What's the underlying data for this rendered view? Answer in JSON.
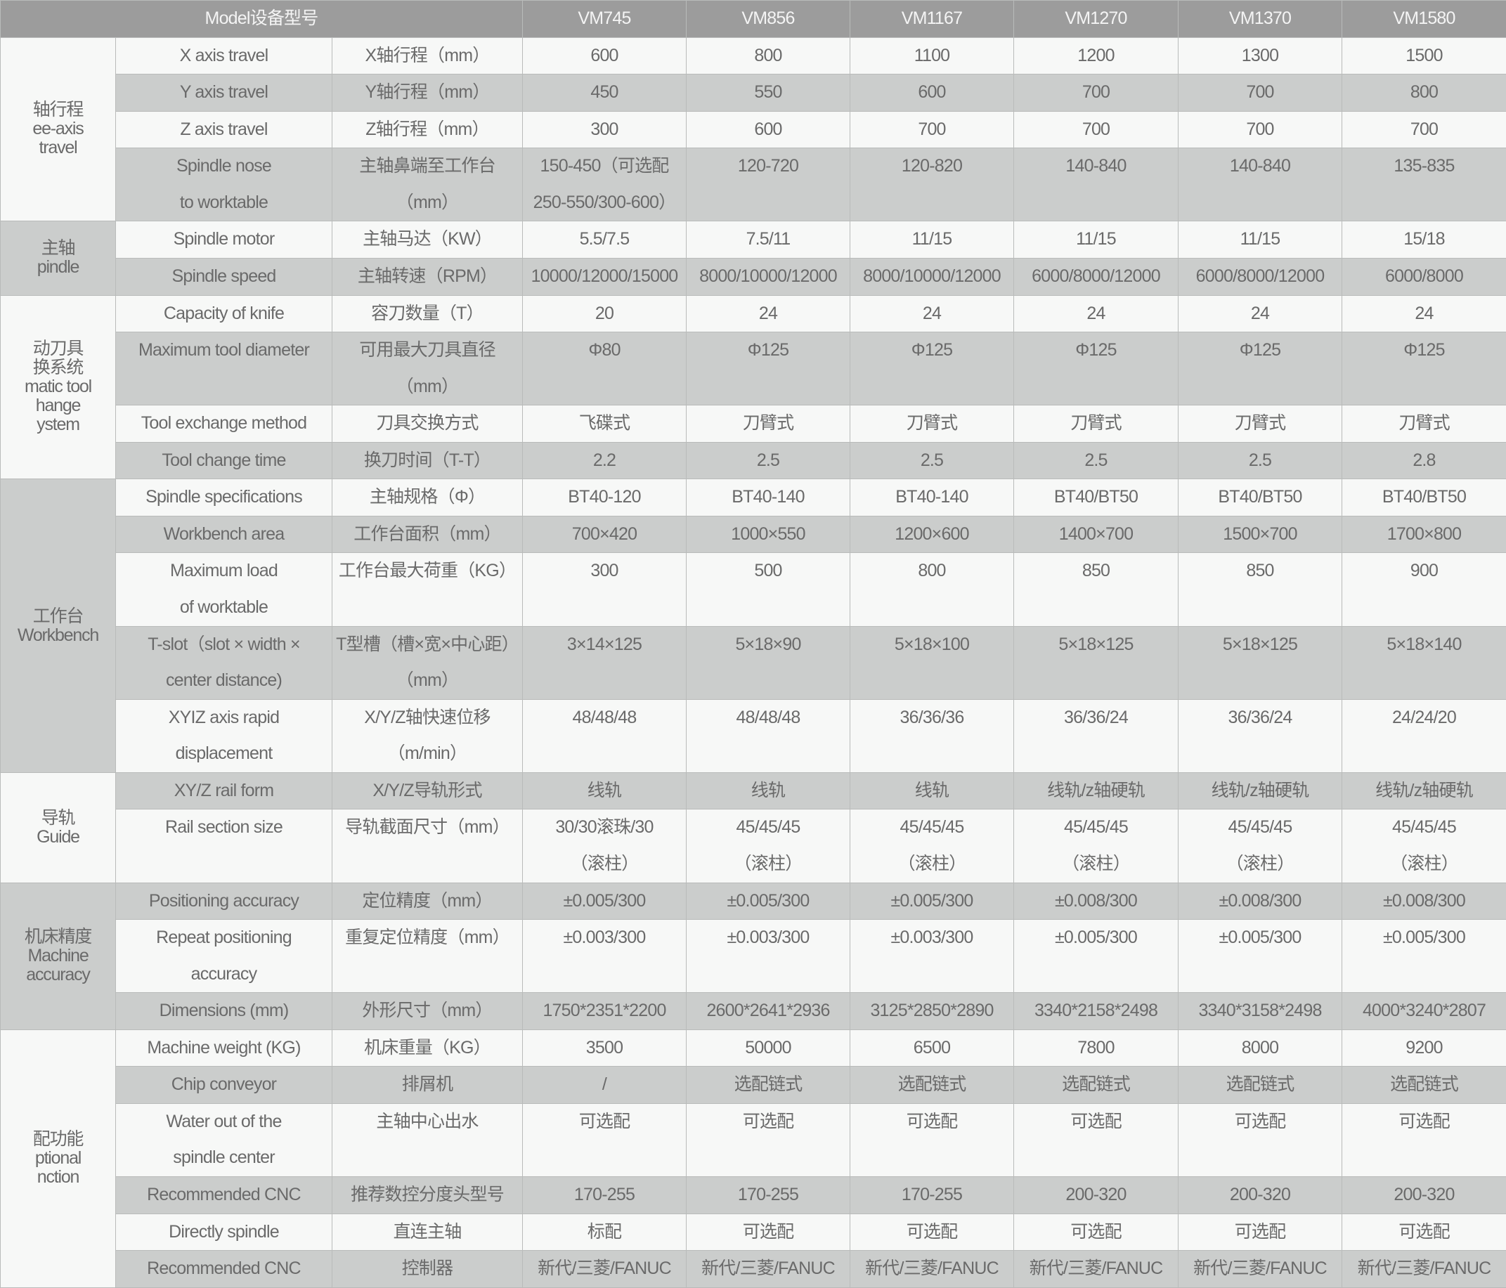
{
  "header": {
    "model_label": "Model设备型号",
    "models": [
      "VM745",
      "VM856",
      "VM1167",
      "VM1270",
      "VM1370",
      "VM1580"
    ]
  },
  "colors": {
    "header_bg": "#9c9c9c",
    "row_grey": "#cbcdcc",
    "row_white": "#f7f8f7",
    "text": "#6a6a6a"
  },
  "groups": [
    {
      "label": "轴行程\nee-axis\ntravel",
      "rows": [
        {
          "en": "X axis travel",
          "zh": "X轴行程（mm）",
          "values": [
            "600",
            "800",
            "1100",
            "1200",
            "1300",
            "1500"
          ]
        },
        {
          "en": "Y axis travel",
          "zh": "Y轴行程（mm）",
          "values": [
            "450",
            "550",
            "600",
            "700",
            "700",
            "800"
          ]
        },
        {
          "en": "Z axis travel",
          "zh": "Z轴行程（mm）",
          "values": [
            "300",
            "600",
            "700",
            "700",
            "700",
            "700"
          ]
        },
        {
          "en": "Spindle nose\nto worktable",
          "zh": "主轴鼻端至工作台\n（mm）",
          "values": [
            "150-450（可选配\n250-550/300-600）",
            "120-720",
            "120-820",
            "140-840",
            "140-840",
            "135-835"
          ]
        }
      ]
    },
    {
      "label": "主轴\npindle",
      "rows": [
        {
          "en": "Spindle motor",
          "zh": "主轴马达（KW）",
          "values": [
            "5.5/7.5",
            "7.5/11",
            "11/15",
            "11/15",
            "11/15",
            "15/18"
          ]
        },
        {
          "en": "Spindle speed",
          "zh": "主轴转速（RPM）",
          "values": [
            "10000/12000/15000",
            "8000/10000/12000",
            "8000/10000/12000",
            "6000/8000/12000",
            "6000/8000/12000",
            "6000/8000"
          ]
        }
      ]
    },
    {
      "label": "动刀具\n换系统\nmatic tool\nhange\nystem",
      "rows": [
        {
          "en": "Capacity of knife",
          "zh": "容刀数量（T）",
          "values": [
            "20",
            "24",
            "24",
            "24",
            "24",
            "24"
          ]
        },
        {
          "en": "Maximum tool diameter",
          "zh": "可用最大刀具直径\n（mm）",
          "values": [
            "Φ80",
            "Φ125",
            "Φ125",
            "Φ125",
            "Φ125",
            "Φ125"
          ]
        },
        {
          "en": "Tool exchange method",
          "zh": "刀具交换方式",
          "values": [
            "飞碟式",
            "刀臂式",
            "刀臂式",
            "刀臂式",
            "刀臂式",
            "刀臂式"
          ]
        },
        {
          "en": "Tool change time",
          "zh": "换刀时间（T-T）",
          "values": [
            "2.2",
            "2.5",
            "2.5",
            "2.5",
            "2.5",
            "2.8"
          ]
        }
      ]
    },
    {
      "label": "工作台\nWorkbench",
      "rows": [
        {
          "en": "Spindle specifications",
          "zh": "主轴规格（Φ）",
          "values": [
            "BT40-120",
            "BT40-140",
            "BT40-140",
            "BT40/BT50",
            "BT40/BT50",
            "BT40/BT50"
          ]
        },
        {
          "en": "Workbench area",
          "zh": "工作台面积（mm）",
          "values": [
            "700×420",
            "1000×550",
            "1200×600",
            "1400×700",
            "1500×700",
            "1700×800"
          ]
        },
        {
          "en": "Maximum load\nof worktable",
          "zh": "工作台最大荷重（KG）",
          "values": [
            "300",
            "500",
            "800",
            "850",
            "850",
            "900"
          ]
        },
        {
          "en": "T-slot（slot × width ×\ncenter distance)",
          "zh": "T型槽（槽×宽×中心距）\n（mm）",
          "values": [
            "3×14×125",
            "5×18×90",
            "5×18×100",
            "5×18×125",
            "5×18×125",
            "5×18×140"
          ]
        },
        {
          "en": "XYIZ axis rapid\ndisplacement",
          "zh": "X/Y/Z轴快速位移\n（m/min）",
          "values": [
            "48/48/48",
            "48/48/48",
            "36/36/36",
            "36/36/24",
            "36/36/24",
            "24/24/20"
          ]
        }
      ]
    },
    {
      "label": "导轨\nGuide",
      "rows": [
        {
          "en": "XY/Z rail form",
          "zh": "X/Y/Z导轨形式",
          "values": [
            "线轨",
            "线轨",
            "线轨",
            "线轨/z轴硬轨",
            "线轨/z轴硬轨",
            "线轨/z轴硬轨"
          ]
        },
        {
          "en": "Rail section size",
          "zh": "导轨截面尺寸（mm）",
          "values": [
            "30/30滚珠/30\n（滚柱）",
            "45/45/45\n（滚柱）",
            "45/45/45\n（滚柱）",
            "45/45/45\n（滚柱）",
            "45/45/45\n（滚柱）",
            "45/45/45\n（滚柱）"
          ],
          "tall": true
        }
      ]
    },
    {
      "label": "机床精度\nMachine\naccuracy",
      "rows": [
        {
          "en": "Positioning accuracy",
          "zh": "定位精度（mm）",
          "values": [
            "±0.005/300",
            "±0.005/300",
            "±0.005/300",
            "±0.008/300",
            "±0.008/300",
            "±0.008/300"
          ]
        },
        {
          "en": "Repeat positioning\naccuracy",
          "zh": "重复定位精度（mm）",
          "values": [
            "±0.003/300",
            "±0.003/300",
            "±0.003/300",
            "±0.005/300",
            "±0.005/300",
            "±0.005/300"
          ]
        },
        {
          "en": "Dimensions (mm)",
          "zh": "外形尺寸（mm）",
          "values": [
            "1750*2351*2200",
            "2600*2641*2936",
            "3125*2850*2890",
            "3340*2158*2498",
            "3340*3158*2498",
            "4000*3240*2807"
          ]
        }
      ]
    },
    {
      "label": "配功能\nptional\nnction",
      "rows": [
        {
          "en": "Machine weight (KG)",
          "zh": "机床重量（KG）",
          "values": [
            "3500",
            "50000",
            "6500",
            "7800",
            "8000",
            "9200"
          ]
        },
        {
          "en": "Chip conveyor",
          "zh": "排屑机",
          "values": [
            "/",
            "选配链式",
            "选配链式",
            "选配链式",
            "选配链式",
            "选配链式"
          ]
        },
        {
          "en": "Water out of the\nspindle center",
          "zh": "主轴中心出水",
          "values": [
            "可选配",
            "可选配",
            "可选配",
            "可选配",
            "可选配",
            "可选配"
          ]
        },
        {
          "en": "Recommended CNC",
          "zh": "推荐数控分度头型号",
          "values": [
            "170-255",
            "170-255",
            "170-255",
            "200-320",
            "200-320",
            "200-320"
          ]
        },
        {
          "en": "Directly spindle",
          "zh": "直连主轴",
          "values": [
            "标配",
            "可选配",
            "可选配",
            "可选配",
            "可选配",
            "可选配"
          ]
        },
        {
          "en": "Recommended    CNC",
          "zh": "控制器",
          "values": [
            "新代/三菱/FANUC",
            "新代/三菱/FANUC",
            "新代/三菱/FANUC",
            "新代/三菱/FANUC",
            "新代/三菱/FANUC",
            "新代/三菱/FANUC"
          ]
        }
      ]
    }
  ]
}
